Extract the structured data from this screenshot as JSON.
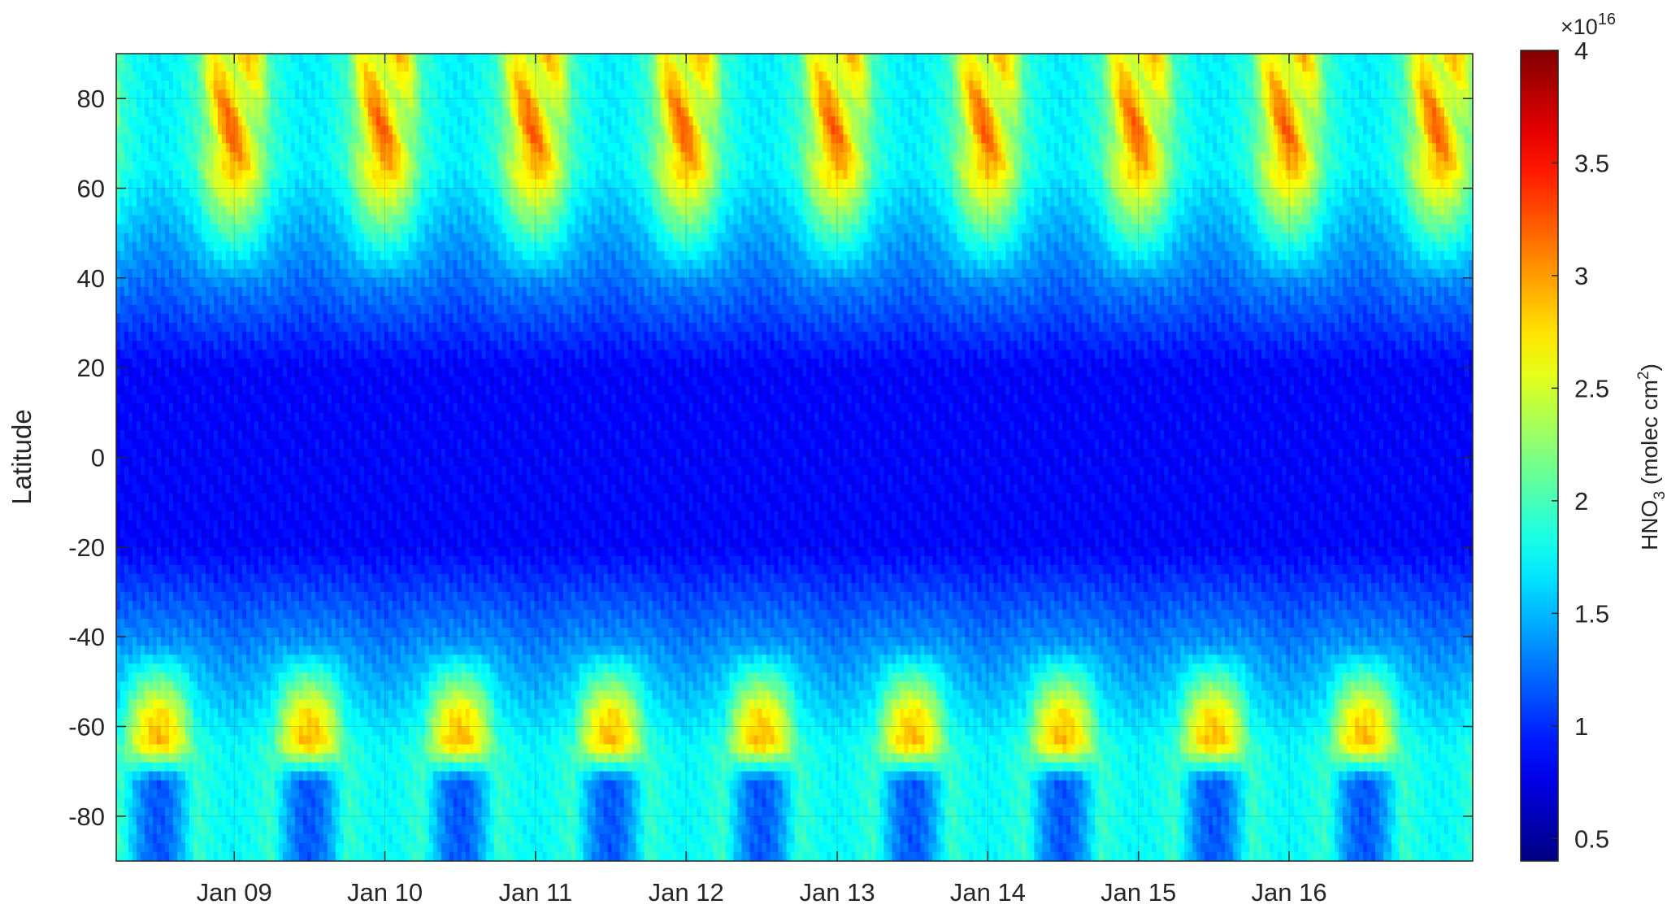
{
  "chart_data": {
    "type": "heatmap",
    "title": "",
    "xlabel": "",
    "ylabel": "Latitude",
    "x_tick_labels": [
      "Jan 09",
      "Jan 10",
      "Jan 11",
      "Jan 12",
      "Jan 13",
      "Jan 14",
      "Jan 15",
      "Jan 16"
    ],
    "x_tick_years": [
      2009,
      2010,
      2011,
      2012,
      2013,
      2014,
      2015,
      2016
    ],
    "xlim": [
      "2008-03-21",
      "2017-03-21"
    ],
    "y_ticks": [
      80,
      60,
      40,
      20,
      0,
      -20,
      -40,
      -60,
      -80
    ],
    "y_tick_labels": [
      "80",
      "60",
      "40",
      "20",
      "0",
      "-20",
      "-40",
      "-60",
      "-80"
    ],
    "ylim": [
      -90,
      90
    ],
    "grid": true,
    "colorbar": {
      "label_main": "HNO",
      "label_sub": "3",
      "label_units": " (molec cm",
      "label_sup": "2",
      "label_close": ")",
      "multiplier_base": "×10",
      "multiplier_exponent": "16",
      "range": [
        0.4,
        4.0
      ],
      "ticks": [
        0.5,
        1,
        1.5,
        2,
        2.5,
        3,
        3.5,
        4
      ],
      "tick_labels": [
        "0.5",
        "1",
        "1.5",
        "2",
        "2.5",
        "3",
        "3.5",
        "4"
      ],
      "colormap": "jet"
    },
    "contours": [
      {
        "color": "#000000"
      },
      {
        "color": "#1ec8dc"
      },
      {
        "color": "#0a20e0"
      }
    ]
  }
}
